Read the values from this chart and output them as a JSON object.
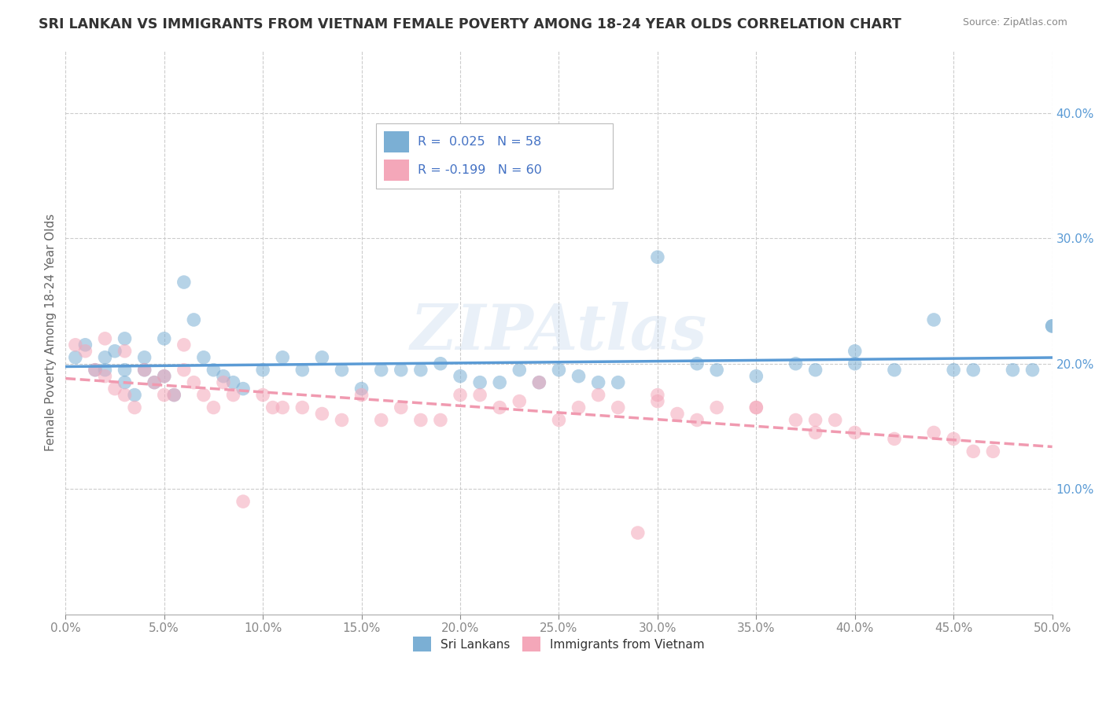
{
  "title": "SRI LANKAN VS IMMIGRANTS FROM VIETNAM FEMALE POVERTY AMONG 18-24 YEAR OLDS CORRELATION CHART",
  "source": "Source: ZipAtlas.com",
  "ylabel": "Female Poverty Among 18-24 Year Olds",
  "xlim": [
    0.0,
    0.5
  ],
  "ylim": [
    0.0,
    0.45
  ],
  "xticks": [
    0.0,
    0.05,
    0.1,
    0.15,
    0.2,
    0.25,
    0.3,
    0.35,
    0.4,
    0.45,
    0.5
  ],
  "yticks_right": [
    0.1,
    0.2,
    0.3,
    0.4
  ],
  "sri_lankan_color": "#7bafd4",
  "vietnam_color": "#f4a7b9",
  "sri_lankan_line_color": "#5b9bd5",
  "vietnam_line_color": "#f09ab0",
  "background_color": "#ffffff",
  "grid_color": "#cccccc",
  "R_sri": 0.025,
  "N_sri": 58,
  "R_viet": -0.199,
  "N_viet": 60,
  "sri_lankan_x": [
    0.005,
    0.01,
    0.015,
    0.02,
    0.02,
    0.025,
    0.03,
    0.03,
    0.03,
    0.035,
    0.04,
    0.04,
    0.045,
    0.05,
    0.05,
    0.055,
    0.06,
    0.065,
    0.07,
    0.075,
    0.08,
    0.085,
    0.09,
    0.1,
    0.11,
    0.12,
    0.13,
    0.14,
    0.15,
    0.16,
    0.17,
    0.18,
    0.19,
    0.2,
    0.21,
    0.22,
    0.23,
    0.24,
    0.25,
    0.26,
    0.27,
    0.28,
    0.3,
    0.32,
    0.33,
    0.35,
    0.37,
    0.38,
    0.4,
    0.42,
    0.44,
    0.46,
    0.48,
    0.5,
    0.4,
    0.45,
    0.49,
    0.5
  ],
  "sri_lankan_y": [
    0.205,
    0.215,
    0.195,
    0.205,
    0.195,
    0.21,
    0.185,
    0.195,
    0.22,
    0.175,
    0.205,
    0.195,
    0.185,
    0.19,
    0.22,
    0.175,
    0.265,
    0.235,
    0.205,
    0.195,
    0.19,
    0.185,
    0.18,
    0.195,
    0.205,
    0.195,
    0.205,
    0.195,
    0.18,
    0.195,
    0.195,
    0.195,
    0.2,
    0.19,
    0.185,
    0.185,
    0.195,
    0.185,
    0.195,
    0.19,
    0.185,
    0.185,
    0.285,
    0.2,
    0.195,
    0.19,
    0.2,
    0.195,
    0.2,
    0.195,
    0.235,
    0.195,
    0.195,
    0.23,
    0.21,
    0.195,
    0.195,
    0.23
  ],
  "vietnam_x": [
    0.005,
    0.01,
    0.015,
    0.02,
    0.02,
    0.025,
    0.03,
    0.03,
    0.035,
    0.04,
    0.045,
    0.05,
    0.05,
    0.055,
    0.06,
    0.06,
    0.065,
    0.07,
    0.075,
    0.08,
    0.085,
    0.09,
    0.1,
    0.105,
    0.11,
    0.12,
    0.13,
    0.14,
    0.15,
    0.16,
    0.17,
    0.18,
    0.19,
    0.2,
    0.21,
    0.22,
    0.23,
    0.24,
    0.25,
    0.26,
    0.27,
    0.28,
    0.29,
    0.3,
    0.31,
    0.32,
    0.33,
    0.35,
    0.37,
    0.38,
    0.39,
    0.4,
    0.42,
    0.44,
    0.45,
    0.46,
    0.47,
    0.3,
    0.35,
    0.38
  ],
  "vietnam_y": [
    0.215,
    0.21,
    0.195,
    0.19,
    0.22,
    0.18,
    0.175,
    0.21,
    0.165,
    0.195,
    0.185,
    0.175,
    0.19,
    0.175,
    0.195,
    0.215,
    0.185,
    0.175,
    0.165,
    0.185,
    0.175,
    0.09,
    0.175,
    0.165,
    0.165,
    0.165,
    0.16,
    0.155,
    0.175,
    0.155,
    0.165,
    0.155,
    0.155,
    0.175,
    0.175,
    0.165,
    0.17,
    0.185,
    0.155,
    0.165,
    0.175,
    0.165,
    0.065,
    0.17,
    0.16,
    0.155,
    0.165,
    0.165,
    0.155,
    0.145,
    0.155,
    0.145,
    0.14,
    0.145,
    0.14,
    0.13,
    0.13,
    0.175,
    0.165,
    0.155
  ]
}
